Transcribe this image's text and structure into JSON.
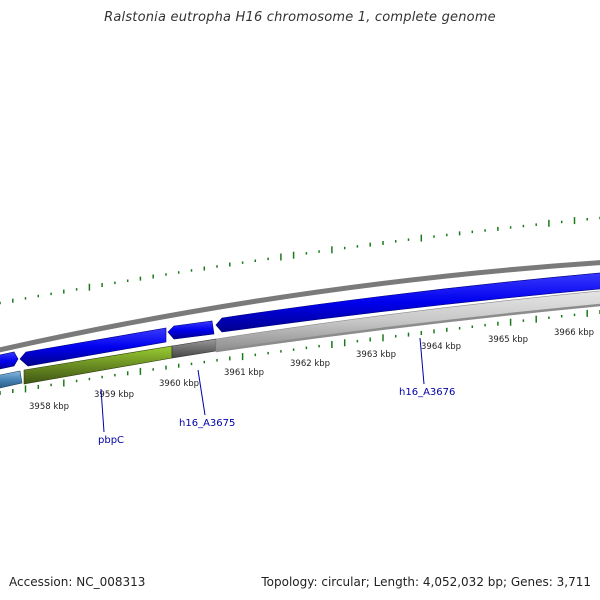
{
  "title": "Ralstonia eutropha H16 chromosome 1, complete genome",
  "footer": {
    "accession": "Accession: NC_008313",
    "summary": "Topology: circular; Length: 4,052,032 bp; Genes: 3,711"
  },
  "scale_labels": [
    "3958 kbp",
    "3959 kbp",
    "3960 kbp",
    "3961 kbp",
    "3962 kbp",
    "3963 kbp",
    "3964 kbp",
    "3965 kbp",
    "3966 kbp"
  ],
  "gene_labels": [
    "pbpC",
    "h16_A3675",
    "h16_A3676"
  ],
  "colors": {
    "backbone": "#808080",
    "forward_gene": "#0000ee",
    "reverse_gene_green": "#6b8e23",
    "reverse_gene_gray": "#6e6e6e",
    "reverse_gene_light": "#c8c8c8",
    "edge_gene": "#4682b4",
    "gc_tick": "#1a7a1a",
    "label_link": "#0000aa"
  }
}
